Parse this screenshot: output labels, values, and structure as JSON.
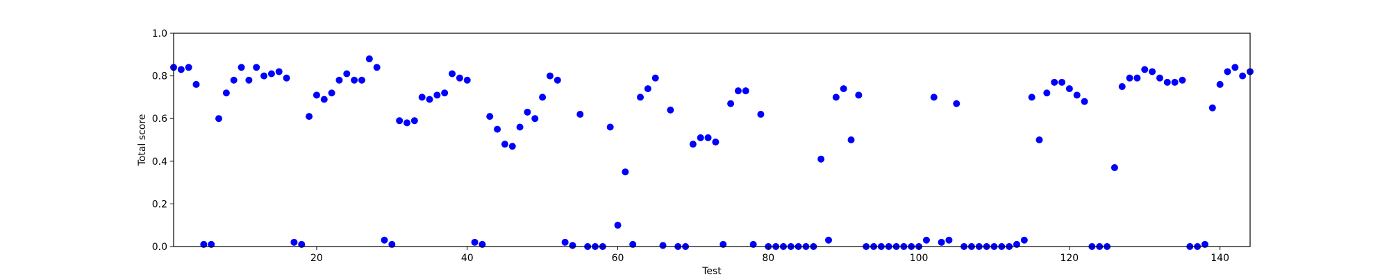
{
  "chart_data": {
    "type": "scatter",
    "title": "",
    "xlabel": "Test",
    "ylabel": "Total score",
    "xlim": [
      1,
      144
    ],
    "ylim": [
      0.0,
      1.0
    ],
    "grid": false,
    "legend": "none",
    "marker_color": "#0000ff",
    "x_ticks": [
      20,
      40,
      60,
      80,
      100,
      120,
      140
    ],
    "x_tick_labels": [
      "20",
      "40",
      "60",
      "80",
      "100",
      "120",
      "140"
    ],
    "y_ticks": [
      0.0,
      0.2,
      0.4,
      0.6,
      0.8,
      1.0
    ],
    "y_tick_labels": [
      "0.0",
      "0.2",
      "0.4",
      "0.6",
      "0.8",
      "1.0"
    ],
    "x": [
      1,
      2,
      3,
      4,
      5,
      6,
      7,
      8,
      9,
      10,
      11,
      12,
      13,
      14,
      15,
      16,
      17,
      18,
      19,
      20,
      21,
      22,
      23,
      24,
      25,
      26,
      27,
      28,
      29,
      30,
      31,
      32,
      33,
      34,
      35,
      36,
      37,
      38,
      39,
      40,
      41,
      42,
      43,
      44,
      45,
      46,
      47,
      48,
      49,
      50,
      51,
      52,
      53,
      54,
      55,
      56,
      57,
      58,
      59,
      60,
      61,
      62,
      63,
      64,
      65,
      66,
      67,
      68,
      69,
      70,
      71,
      72,
      73,
      74,
      75,
      76,
      77,
      78,
      79,
      80,
      81,
      82,
      83,
      84,
      85,
      86,
      87,
      88,
      89,
      90,
      91,
      92,
      93,
      94,
      95,
      96,
      97,
      98,
      99,
      100,
      101,
      102,
      103,
      104,
      105,
      106,
      107,
      108,
      109,
      110,
      111,
      112,
      113,
      114,
      115,
      116,
      117,
      118,
      119,
      120,
      121,
      122,
      123,
      124,
      125,
      126,
      127,
      128,
      129,
      130,
      131,
      132,
      133,
      134,
      135,
      136,
      137,
      138,
      139,
      140,
      141,
      142,
      143,
      144
    ],
    "y": [
      0.84,
      0.83,
      0.84,
      0.76,
      0.01,
      0.01,
      0.6,
      0.72,
      0.78,
      0.84,
      0.78,
      0.84,
      0.8,
      0.81,
      0.82,
      0.79,
      0.02,
      0.01,
      0.61,
      0.71,
      0.69,
      0.72,
      0.78,
      0.81,
      0.78,
      0.78,
      0.88,
      0.84,
      0.03,
      0.01,
      0.59,
      0.58,
      0.59,
      0.7,
      0.69,
      0.71,
      0.72,
      0.81,
      0.79,
      0.78,
      0.02,
      0.01,
      0.61,
      0.55,
      0.48,
      0.47,
      0.56,
      0.63,
      0.6,
      0.7,
      0.8,
      0.78,
      0.02,
      0.005,
      0.62,
      0.0,
      0.0,
      0.0,
      0.56,
      0.1,
      0.35,
      0.01,
      0.7,
      0.74,
      0.79,
      0.005,
      0.64,
      0.0,
      0.0,
      0.48,
      0.51,
      0.51,
      0.49,
      0.01,
      0.67,
      0.73,
      0.73,
      0.01,
      0.62,
      0.0,
      0.0,
      0.0,
      0.0,
      0.0,
      0.0,
      0.0,
      0.41,
      0.03,
      0.7,
      0.74,
      0.5,
      0.71,
      0.0,
      0.0,
      0.0,
      0.0,
      0.0,
      0.0,
      0.0,
      0.0,
      0.03,
      0.7,
      0.02,
      0.03,
      0.67,
      0.0,
      0.0,
      0.0,
      0.0,
      0.0,
      0.0,
      0.0,
      0.01,
      0.03,
      0.7,
      0.5,
      0.72,
      0.77,
      0.77,
      0.74,
      0.71,
      0.68,
      0.0,
      0.0,
      0.0,
      0.37,
      0.75,
      0.79,
      0.79,
      0.83,
      0.82,
      0.79,
      0.77,
      0.77,
      0.78,
      0.0,
      0.0,
      0.01,
      0.65,
      0.76,
      0.82,
      0.84,
      0.8,
      0.82
    ]
  }
}
